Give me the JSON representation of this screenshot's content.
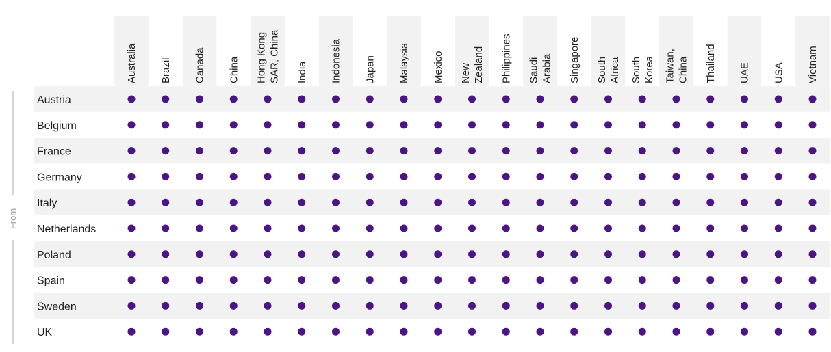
{
  "chart_data": {
    "type": "table",
    "axis_label": "From",
    "columns": [
      {
        "lines": [
          "Australia"
        ]
      },
      {
        "lines": [
          "Brazil"
        ]
      },
      {
        "lines": [
          "Canada"
        ]
      },
      {
        "lines": [
          "China"
        ]
      },
      {
        "lines": [
          "Hong Kong",
          "SAR, China"
        ]
      },
      {
        "lines": [
          "India"
        ]
      },
      {
        "lines": [
          "Indonesia"
        ]
      },
      {
        "lines": [
          "Japan"
        ]
      },
      {
        "lines": [
          "Malaysia"
        ]
      },
      {
        "lines": [
          "Mexico"
        ]
      },
      {
        "lines": [
          "New",
          "Zealand"
        ]
      },
      {
        "lines": [
          "Philippines"
        ]
      },
      {
        "lines": [
          "Saudi",
          "Arabia"
        ]
      },
      {
        "lines": [
          "Singapore"
        ]
      },
      {
        "lines": [
          "South",
          "Africa"
        ]
      },
      {
        "lines": [
          "South",
          "Korea"
        ]
      },
      {
        "lines": [
          "Taiwan,",
          "China"
        ]
      },
      {
        "lines": [
          "Thailand"
        ]
      },
      {
        "lines": [
          "UAE"
        ]
      },
      {
        "lines": [
          "USA"
        ]
      },
      {
        "lines": [
          "Vietnam"
        ]
      }
    ],
    "rows": [
      "Austria",
      "Belgium",
      "France",
      "Germany",
      "Italy",
      "Netherlands",
      "Poland",
      "Spain",
      "Sweden",
      "UK"
    ],
    "cells": [
      [
        1,
        1,
        1,
        1,
        1,
        1,
        1,
        1,
        1,
        1,
        1,
        1,
        1,
        1,
        1,
        1,
        1,
        1,
        1,
        1,
        1
      ],
      [
        1,
        1,
        1,
        1,
        1,
        1,
        1,
        1,
        1,
        1,
        1,
        1,
        1,
        1,
        1,
        1,
        1,
        1,
        1,
        1,
        1
      ],
      [
        1,
        1,
        1,
        1,
        1,
        1,
        1,
        1,
        1,
        1,
        1,
        1,
        1,
        1,
        1,
        1,
        1,
        1,
        1,
        1,
        1
      ],
      [
        1,
        1,
        1,
        1,
        1,
        1,
        1,
        1,
        1,
        1,
        1,
        1,
        1,
        1,
        1,
        1,
        1,
        1,
        1,
        1,
        1
      ],
      [
        1,
        1,
        1,
        1,
        1,
        1,
        1,
        1,
        1,
        1,
        1,
        1,
        1,
        1,
        1,
        1,
        1,
        1,
        1,
        1,
        1
      ],
      [
        1,
        1,
        1,
        1,
        1,
        1,
        1,
        1,
        1,
        1,
        1,
        1,
        1,
        1,
        1,
        1,
        1,
        1,
        1,
        1,
        1
      ],
      [
        1,
        1,
        1,
        1,
        1,
        1,
        1,
        1,
        1,
        1,
        1,
        1,
        1,
        1,
        1,
        1,
        1,
        1,
        1,
        1,
        1
      ],
      [
        1,
        1,
        1,
        1,
        1,
        1,
        1,
        1,
        1,
        1,
        1,
        1,
        1,
        1,
        1,
        1,
        1,
        1,
        1,
        1,
        1
      ],
      [
        1,
        1,
        1,
        1,
        1,
        1,
        1,
        1,
        1,
        1,
        1,
        1,
        1,
        1,
        1,
        1,
        1,
        1,
        1,
        1,
        1
      ],
      [
        1,
        1,
        1,
        1,
        1,
        1,
        1,
        1,
        1,
        1,
        1,
        1,
        1,
        1,
        1,
        1,
        1,
        1,
        1,
        1,
        1
      ]
    ],
    "colors": {
      "dot": "#4b1584",
      "shade": "#f2f2f2",
      "axis_line": "#aaaaaa",
      "axis_text": "#999999"
    }
  }
}
